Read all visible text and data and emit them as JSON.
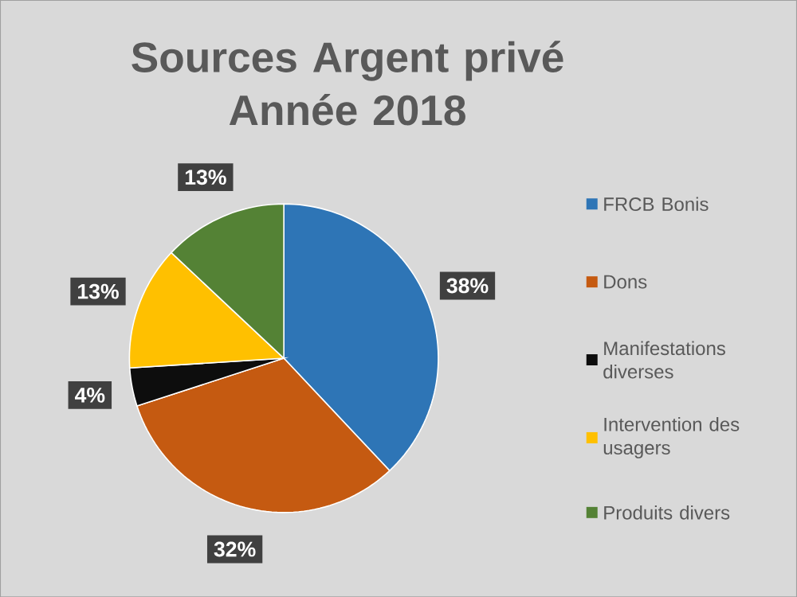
{
  "chart_data": {
    "type": "pie",
    "title": "Sources Argent privé\nAnnée 2018",
    "categories": [
      "FRCB Bonis",
      "Dons",
      "Manifestations diverses",
      "Intervention des usagers",
      "Produits divers"
    ],
    "values": [
      38,
      32,
      4,
      13,
      13
    ],
    "value_labels": [
      "38%",
      "32%",
      "4%",
      "13%",
      "13%"
    ],
    "colors": [
      "#2e75b6",
      "#c55a11",
      "#0d0d0d",
      "#ffc000",
      "#548235"
    ],
    "legend": "right"
  }
}
